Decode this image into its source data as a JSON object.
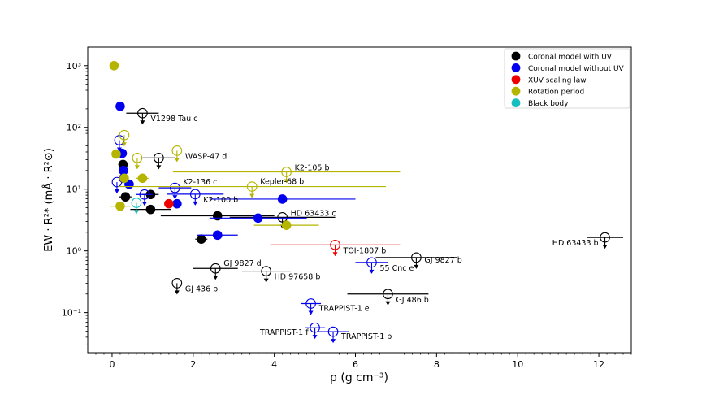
{
  "chart_data": {
    "type": "scatter",
    "xlabel": "ρ (g cm⁻³)",
    "ylabel": "EW · R²* (mÅ · R²⊙)",
    "xlim": [
      -0.6,
      12.8
    ],
    "ylim_log10": [
      -1.65,
      3.3
    ],
    "x_ticks": [
      0,
      2,
      4,
      6,
      8,
      10,
      12
    ],
    "x_tick_labels": [
      "0",
      "2",
      "4",
      "6",
      "8",
      "10",
      "12"
    ],
    "y_ticks_log10": [
      -1,
      0,
      1,
      2,
      3
    ],
    "y_tick_labels": [
      "10⁻¹",
      "10⁰",
      "10¹",
      "10²",
      "10³"
    ],
    "legend": [
      {
        "label": "Coronal model with UV",
        "color": "#000000"
      },
      {
        "label": "Coronal model without UV",
        "color": "#0000ee"
      },
      {
        "label": "XUV scaling law",
        "color": "#ee0000"
      },
      {
        "label": "Rotation period",
        "color": "#b5b500"
      },
      {
        "label": "Black body",
        "color": "#17bebe"
      }
    ],
    "series": [
      {
        "name": "Coronal model with UV",
        "color": "#000000",
        "points": [
          {
            "x": 0.27,
            "y": 25,
            "xerr": 0.1,
            "upper": false
          },
          {
            "x": 0.33,
            "y": 7.5,
            "xerr": 0.15,
            "upper": false
          },
          {
            "x": 0.95,
            "y": 8.2,
            "xerr": 0.2,
            "upper": false
          },
          {
            "x": 0.95,
            "y": 4.7,
            "xerr": 0.5,
            "upper": false
          },
          {
            "x": 2.2,
            "y": 1.55,
            "xerr": 0.15,
            "upper": false
          },
          {
            "x": 2.6,
            "y": 3.7,
            "xerr": 1.4,
            "upper": false
          },
          {
            "x": 0.75,
            "y": 170,
            "xerr": 0.4,
            "upper": true,
            "label": "V1298 Tau c"
          },
          {
            "x": 1.15,
            "y": 32,
            "xerr": 0.4,
            "upper": true
          },
          {
            "x": 4.2,
            "y": 3.5,
            "xerr": 1.3,
            "upper": true,
            "label": "HD 63433 c"
          },
          {
            "x": 12.15,
            "y": 1.65,
            "xerr": 0.45,
            "upper": true,
            "label": "HD 63433 b"
          },
          {
            "x": 1.6,
            "y": 0.3,
            "xerr": 0,
            "upper": true,
            "label": "GJ 436 b"
          },
          {
            "x": 2.55,
            "y": 0.52,
            "xerr": 0.55,
            "upper": true,
            "label": "GJ 9827 d"
          },
          {
            "x": 3.8,
            "y": 0.47,
            "xerr": 0.6,
            "upper": true,
            "label": "HD 97658 b"
          },
          {
            "x": 7.5,
            "y": 0.78,
            "xerr": 1.0,
            "upper": true,
            "label": "GJ 9827 b"
          },
          {
            "x": 6.8,
            "y": 0.2,
            "xerr": 1.0,
            "upper": true,
            "label": "GJ 486 b"
          }
        ]
      },
      {
        "name": "Coronal model without UV",
        "color": "#0000ee",
        "points": [
          {
            "x": 0.2,
            "y": 220,
            "xerr": 0,
            "upper": false
          },
          {
            "x": 0.25,
            "y": 38,
            "xerr": 0,
            "upper": false
          },
          {
            "x": 0.28,
            "y": 20,
            "xerr": 0,
            "upper": false
          },
          {
            "x": 0.28,
            "y": 15,
            "xerr": 0,
            "upper": false
          },
          {
            "x": 0.42,
            "y": 12,
            "xerr": 0,
            "upper": false
          },
          {
            "x": 1.6,
            "y": 5.8,
            "xerr": 0,
            "upper": false
          },
          {
            "x": 2.6,
            "y": 1.8,
            "xerr": 0.5,
            "upper": false
          },
          {
            "x": 3.6,
            "y": 3.4,
            "xerr": 1.2,
            "upper": false
          },
          {
            "x": 4.2,
            "y": 6.9,
            "xerr": 1.8,
            "upper": false
          },
          {
            "x": 0.18,
            "y": 62,
            "xerr": 0,
            "upper": true
          },
          {
            "x": 0.12,
            "y": 13,
            "xerr": 0,
            "upper": true
          },
          {
            "x": 0.8,
            "y": 8.2,
            "xerr": 0.2,
            "upper": true
          },
          {
            "x": 1.55,
            "y": 10.5,
            "xerr": 0.4,
            "upper": true,
            "label": "K2-136 c"
          },
          {
            "x": 2.05,
            "y": 8.3,
            "xerr": 0.7,
            "upper": true,
            "label": "K2-100 b"
          },
          {
            "x": 6.4,
            "y": 0.65,
            "xerr": 0.4,
            "upper": true,
            "label": "55 Cnc e"
          },
          {
            "x": 4.9,
            "y": 0.14,
            "xerr": 0.25,
            "upper": true,
            "label": "TRAPPIST-1 e"
          },
          {
            "x": 5.0,
            "y": 0.057,
            "xerr": 0.25,
            "upper": true,
            "label": "TRAPPIST-1 f"
          },
          {
            "x": 5.45,
            "y": 0.049,
            "xerr": 0.4,
            "upper": true,
            "label": "TRAPPIST-1 b"
          }
        ]
      },
      {
        "name": "XUV scaling law",
        "color": "#ee0000",
        "points": [
          {
            "x": 1.4,
            "y": 5.8,
            "xerr": 0,
            "upper": false
          },
          {
            "x": 5.5,
            "y": 1.25,
            "xerr": 1.6,
            "upper": true,
            "label": "TOI-1807 b"
          }
        ]
      },
      {
        "name": "Rotation period",
        "color": "#b5b500",
        "points": [
          {
            "x": 0.05,
            "y": 1000,
            "xerr": 0,
            "upper": false
          },
          {
            "x": 0.1,
            "y": 37,
            "xerr": 0,
            "upper": false
          },
          {
            "x": 0.3,
            "y": 15,
            "xerr": 0,
            "upper": false
          },
          {
            "x": 0.75,
            "y": 15,
            "xerr": 0.15,
            "upper": false
          },
          {
            "x": 0.2,
            "y": 5.3,
            "xerr": 0.25,
            "upper": false
          },
          {
            "x": 4.3,
            "y": 2.6,
            "xerr": 0.8,
            "upper": false
          },
          {
            "x": 0.3,
            "y": 75,
            "xerr": 0,
            "upper": true
          },
          {
            "x": 0.62,
            "y": 32,
            "xerr": 0,
            "upper": true
          },
          {
            "x": 1.6,
            "y": 42,
            "xerr": 0,
            "upper": true,
            "label": "WASP-47 d"
          },
          {
            "x": 4.3,
            "y": 19,
            "xerr": 2.8,
            "upper": true,
            "label": "K2-105 b"
          },
          {
            "x": 3.45,
            "y": 11,
            "xerr": 3.3,
            "upper": true,
            "label": "Kepler-68 b"
          }
        ]
      },
      {
        "name": "Black body",
        "color": "#17bebe",
        "points": [
          {
            "x": 0.6,
            "y": 6.0,
            "xerr": 0,
            "upper": true
          }
        ]
      }
    ]
  }
}
